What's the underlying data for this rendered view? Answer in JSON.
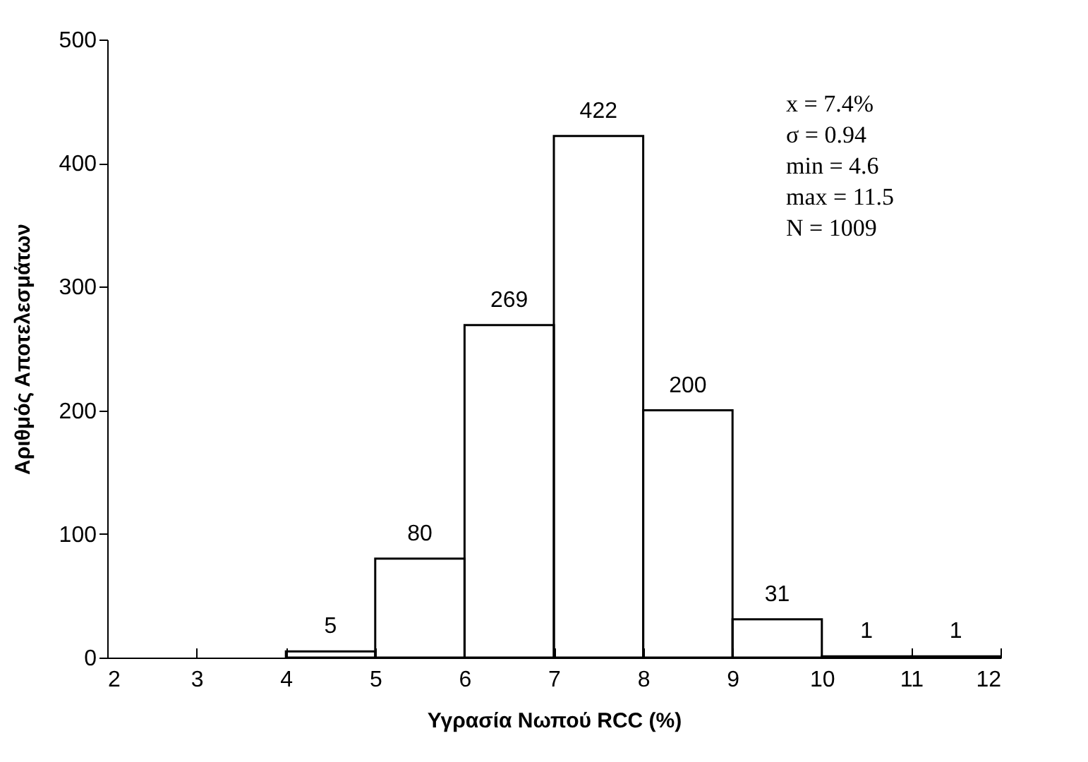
{
  "chart_data": {
    "type": "histogram",
    "xlabel": "Υγρασία Νωπού RCC (%)",
    "ylabel": "Αριθμός Αποτελεσμάτων",
    "bins": [
      4,
      5,
      6,
      7,
      8,
      9,
      10,
      11,
      12
    ],
    "values": [
      5,
      80,
      269,
      422,
      200,
      31,
      1,
      1
    ],
    "color": "#000000",
    "data_labels": true,
    "xlim": [
      2,
      12
    ],
    "xticks": [
      2,
      3,
      4,
      5,
      6,
      7,
      8,
      9,
      10,
      11,
      12
    ],
    "ylim": [
      0,
      500
    ],
    "yticks": [
      0,
      100,
      200,
      300,
      400,
      500
    ],
    "grid": false,
    "annotations": [
      "x = 7.4%",
      "σ = 0.94",
      "min = 4.6",
      "max = 11.5",
      "N = 1009"
    ]
  }
}
